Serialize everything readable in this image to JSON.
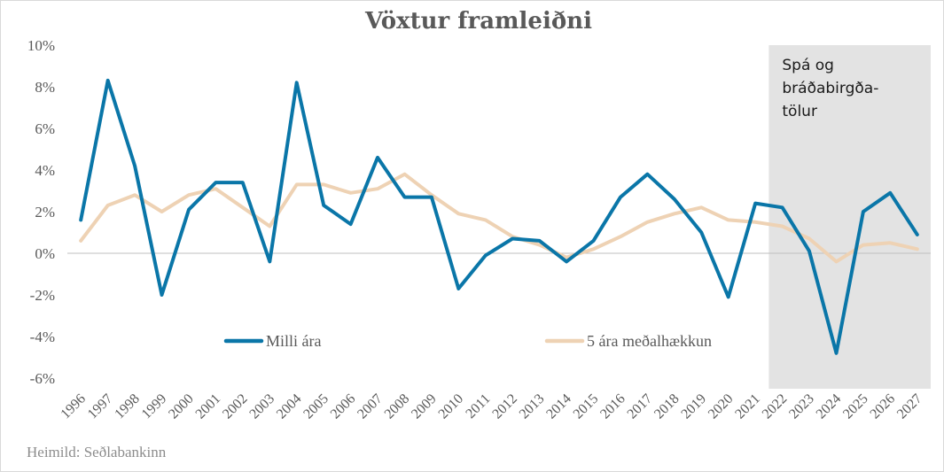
{
  "chart_data": {
    "type": "line",
    "title": "Vöxtur framleiðni",
    "source": "Heimild: Seðlabankinn",
    "forecast_label_lines": [
      "Spá og",
      "bráðabirgða-",
      "tölur"
    ],
    "forecast_start": "2022",
    "forecast_end": "2027",
    "categories": [
      "1996",
      "1997",
      "1998",
      "1999",
      "2000",
      "2001",
      "2002",
      "2003",
      "2004",
      "2005",
      "2006",
      "2007",
      "2008",
      "2009",
      "2010",
      "2011",
      "2012",
      "2013",
      "2014",
      "2015",
      "2016",
      "2017",
      "2018",
      "2019",
      "2020",
      "2021",
      "2022",
      "2023",
      "2024",
      "2025",
      "2026",
      "2027"
    ],
    "ylim": [
      -6,
      10
    ],
    "yticks": [
      10,
      8,
      6,
      4,
      2,
      0,
      -2,
      -4,
      -6
    ],
    "ytick_labels": [
      "10%",
      "8%",
      "6%",
      "4%",
      "2%",
      "0%",
      "-2%",
      "-4%",
      "-6%"
    ],
    "grid": false,
    "legend_position": "inside-bottom",
    "series": [
      {
        "name": "Milli ára",
        "color": "#0A76A8",
        "values": [
          1.6,
          8.3,
          4.2,
          -2.0,
          2.1,
          3.4,
          3.4,
          -0.4,
          8.2,
          2.3,
          1.4,
          4.6,
          2.7,
          2.7,
          -1.7,
          -0.1,
          0.7,
          0.6,
          -0.4,
          0.6,
          2.7,
          3.8,
          2.6,
          1.0,
          -2.1,
          2.4,
          2.2,
          0.1,
          -4.8,
          2.0,
          2.9,
          0.9
        ]
      },
      {
        "name": "5 ára meðalhækkun",
        "color": "#EED2B4",
        "values": [
          0.6,
          2.3,
          2.8,
          2.0,
          2.8,
          3.1,
          2.2,
          1.3,
          3.3,
          3.3,
          2.9,
          3.1,
          3.8,
          2.8,
          1.9,
          1.6,
          0.8,
          0.4,
          -0.2,
          0.2,
          0.8,
          1.5,
          1.9,
          2.2,
          1.6,
          1.5,
          1.3,
          0.7,
          -0.4,
          0.4,
          0.5,
          0.2
        ]
      }
    ]
  }
}
